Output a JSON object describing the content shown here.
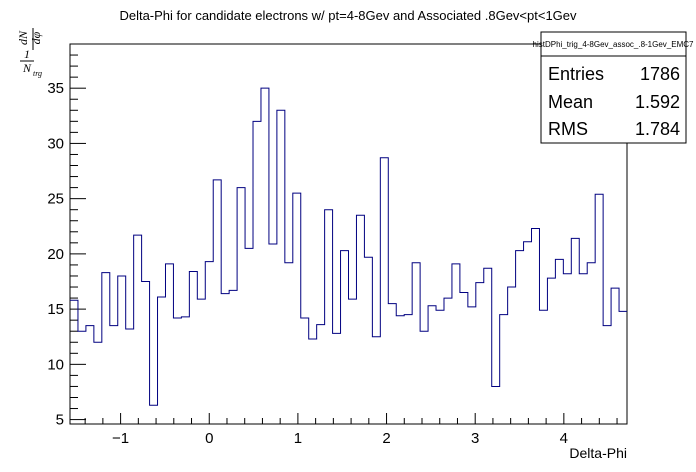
{
  "chart_data": {
    "type": "histogram",
    "title": "Delta-Phi for candidate electrons w/ pt=4-8Gev and Associated .8Gev<pt<1Gev",
    "xlabel": "Delta-Phi",
    "ylabel": "1/N_trg dN/dφ",
    "ylabel_parts": {
      "num1": "1",
      "den1": "N",
      "den1_sub": "trg",
      "num2": "dN",
      "den2": "dφ"
    },
    "xlim": [
      -1.5708,
      4.7124
    ],
    "ylim": [
      4.6,
      39.0
    ],
    "x_ticks": [
      -1,
      0,
      1,
      2,
      3,
      4
    ],
    "x_tick_labels": [
      "−1",
      "0",
      "1",
      "2",
      "3",
      "4"
    ],
    "y_ticks": [
      5,
      10,
      15,
      20,
      25,
      30,
      35
    ],
    "y_tick_labels": [
      "5",
      "10",
      "15",
      "20",
      "25",
      "30",
      "35"
    ],
    "bins": 70,
    "values": [
      15.8,
      13.0,
      13.5,
      12.0,
      18.3,
      13.5,
      18.0,
      13.2,
      21.7,
      17.5,
      6.3,
      16.1,
      19.1,
      14.2,
      14.3,
      18.4,
      15.9,
      19.3,
      26.7,
      16.4,
      16.7,
      26.0,
      20.5,
      32.0,
      35.0,
      20.9,
      33.0,
      19.2,
      25.5,
      14.2,
      12.3,
      13.6,
      24.0,
      12.8,
      20.3,
      15.9,
      23.5,
      19.7,
      12.5,
      28.7,
      15.5,
      14.4,
      14.5,
      19.2,
      13.0,
      15.3,
      14.9,
      16.0,
      19.1,
      16.5,
      15.2,
      17.4,
      18.7,
      8.0,
      14.5,
      17.0,
      20.3,
      21.1,
      22.3,
      14.9,
      17.8,
      19.5,
      18.2,
      21.4,
      18.2,
      19.2,
      25.4,
      13.5,
      16.9,
      14.8
    ],
    "line_color": "#000080",
    "stats_box": {
      "name": "histDPhi_trig_4-8Gev_assoc_.8-1Gev_EMC7",
      "rows": [
        {
          "label": "Entries",
          "value": "1786"
        },
        {
          "label": "Mean",
          "value": "1.592"
        },
        {
          "label": "RMS",
          "value": "1.784"
        }
      ]
    }
  }
}
